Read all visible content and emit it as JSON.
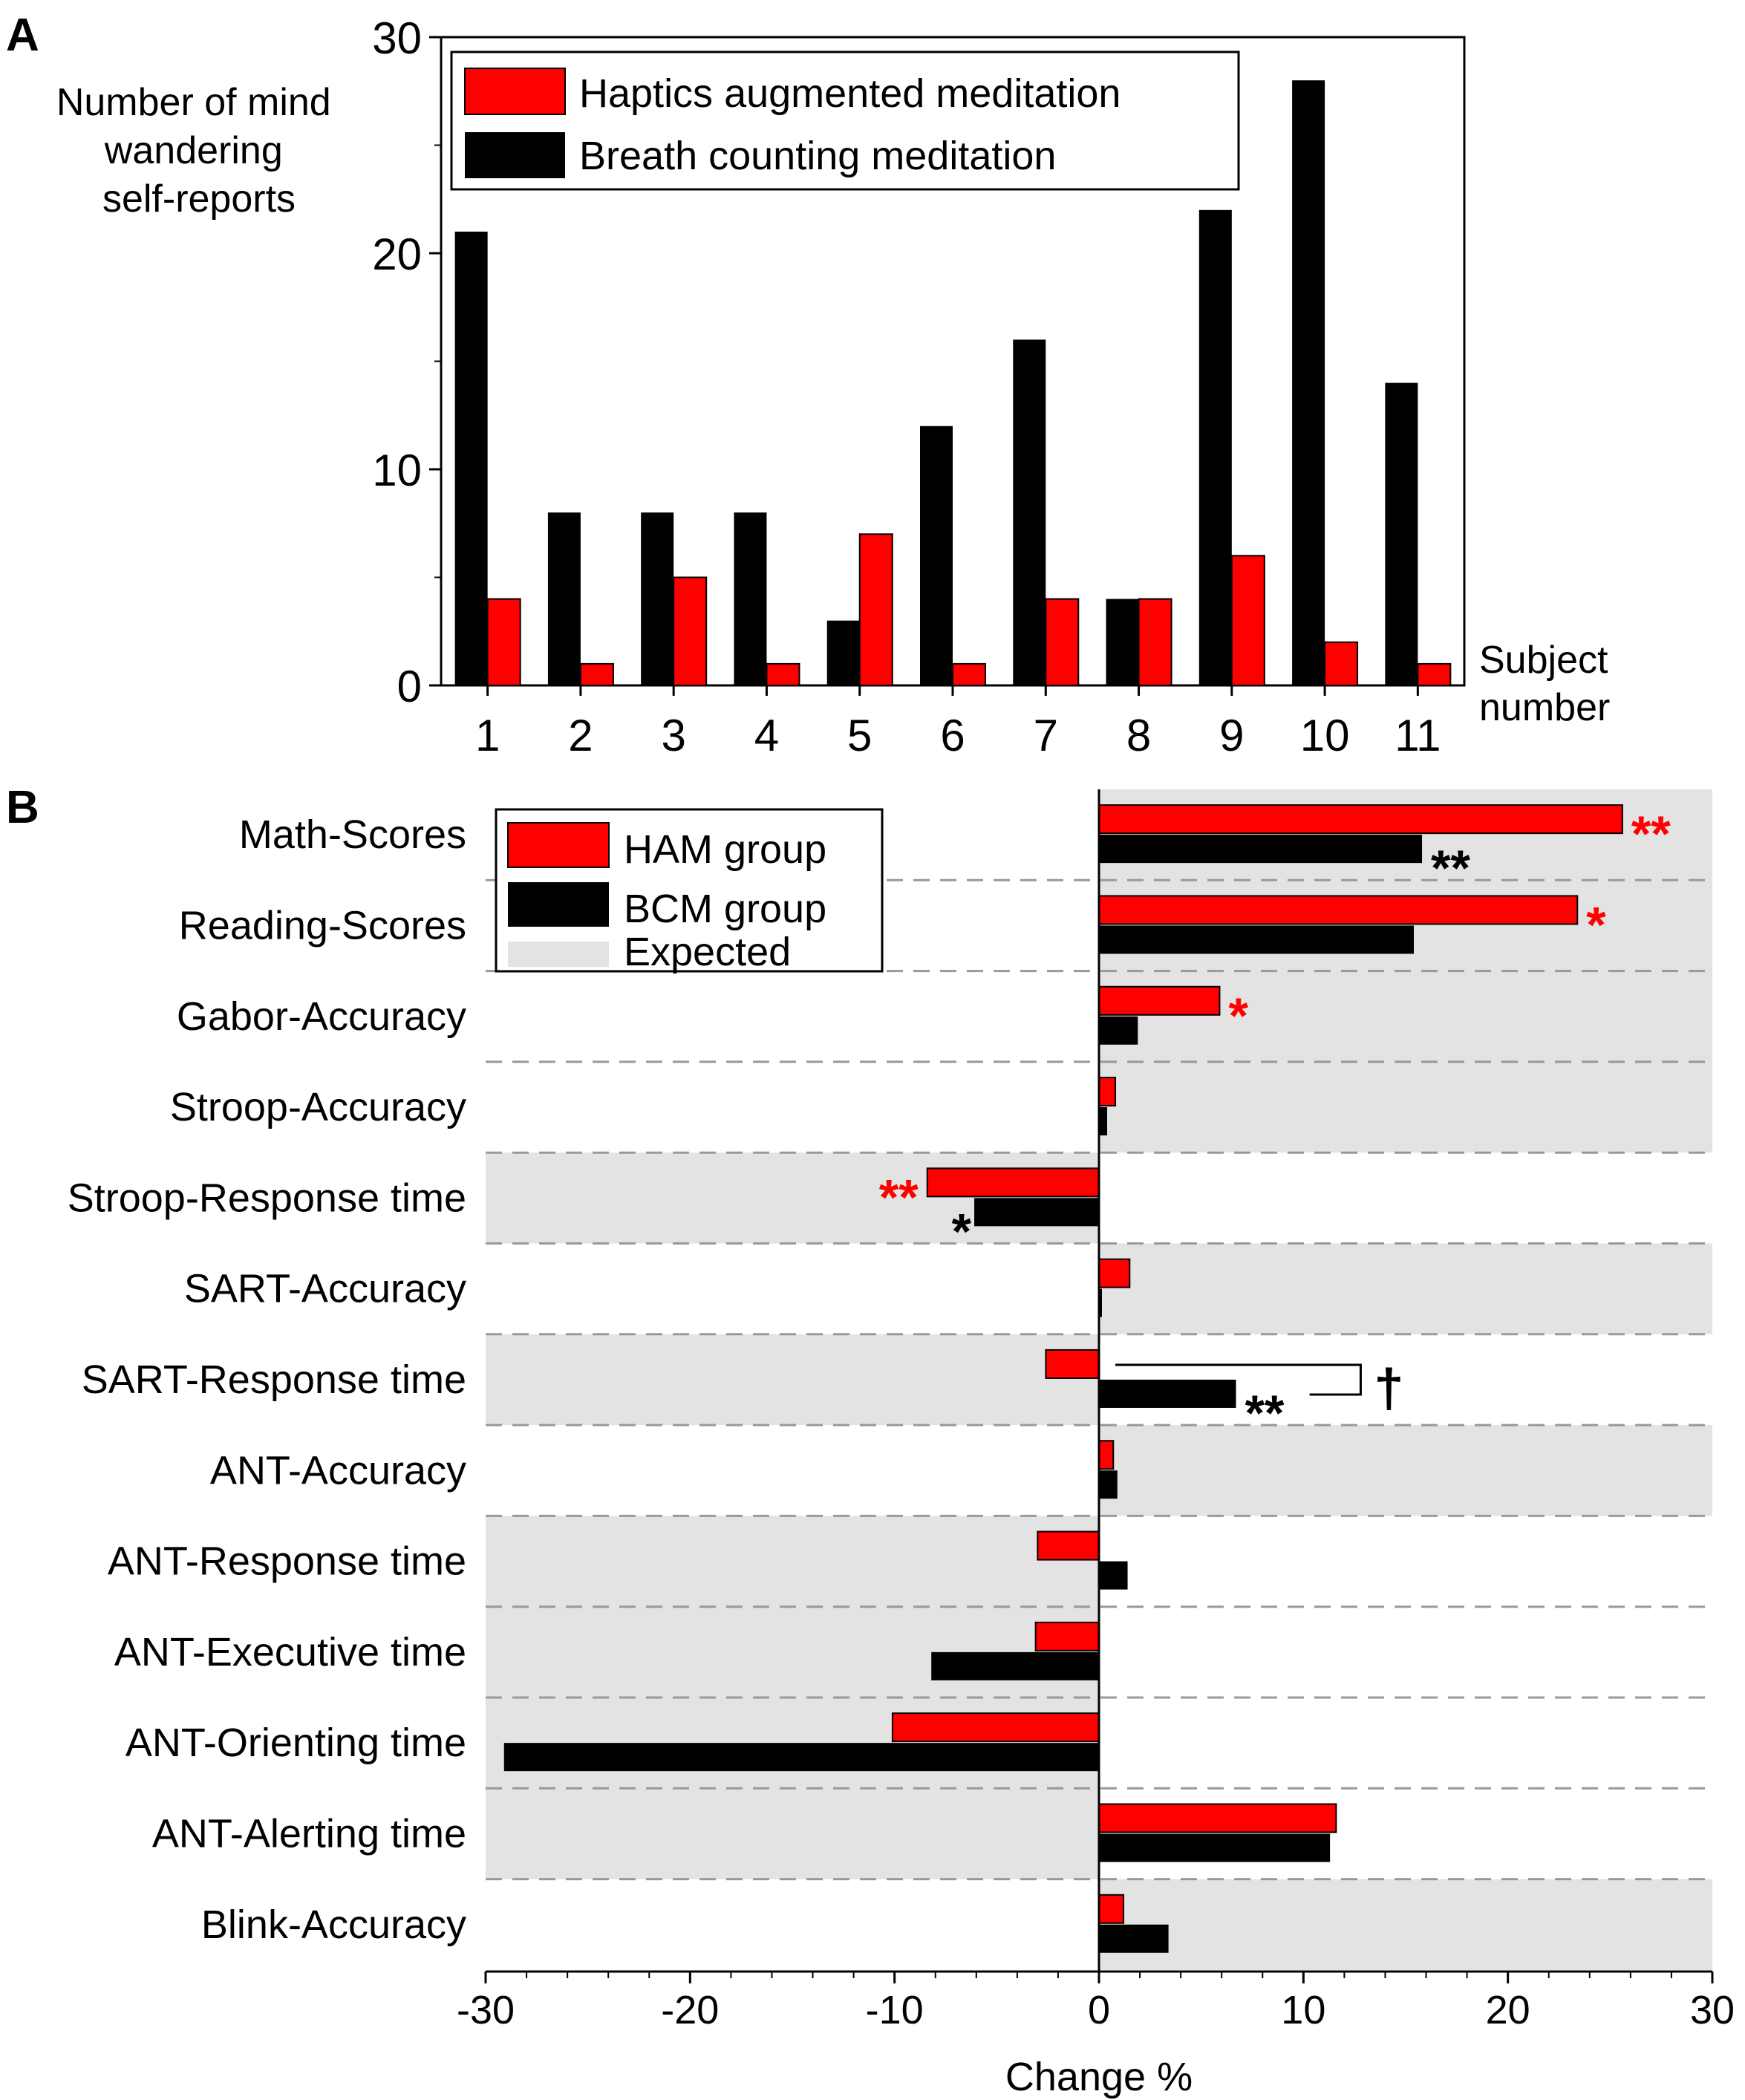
{
  "colors": {
    "ham": "#ff0000",
    "bcm": "#000000",
    "expected": "#e3e3e3",
    "sig_red": "#ff0000",
    "sig_black": "#000000"
  },
  "chart_data": [
    {
      "type": "bar",
      "panel_label": "A",
      "ylabel": [
        "Number of mind",
        "wandering",
        "self-reports"
      ],
      "xlabel": [
        "Subject",
        "number"
      ],
      "categories": [
        "1",
        "2",
        "3",
        "4",
        "5",
        "6",
        "7",
        "8",
        "9",
        "10",
        "11"
      ],
      "ylim": [
        0,
        30
      ],
      "yticks": [
        "0",
        "10",
        "20",
        "30"
      ],
      "series": [
        {
          "name": "Breath counting meditation",
          "values": [
            21,
            8,
            8,
            8,
            3,
            12,
            16,
            4,
            22,
            28,
            14
          ]
        },
        {
          "name": "Haptics augmented meditation",
          "values": [
            4,
            1,
            5,
            1,
            7,
            1,
            4,
            4,
            6,
            2,
            1
          ]
        }
      ],
      "legend": [
        "Haptics augmented meditation",
        "Breath counting meditation"
      ],
      "legend_position": "top"
    },
    {
      "type": "bar-horizontal",
      "panel_label": "B",
      "xlabel": "Change %",
      "xlim": [
        -30,
        30
      ],
      "xticks": [
        "-30",
        "-20",
        "-10",
        "0",
        "10",
        "20",
        "30"
      ],
      "categories": [
        "Math-Scores",
        "Reading-Scores",
        "Gabor-Accuracy",
        "Stroop-Accuracy",
        "Stroop-Response time",
        "SART-Accuracy",
        "SART-Response time",
        "ANT-Accuracy",
        "ANT-Response time",
        "ANT-Executive time",
        "ANT-Orienting time",
        "ANT-Alerting time",
        "Blink-Accuracy"
      ],
      "series": [
        {
          "name": "HAM group",
          "values": [
            25.6,
            23.4,
            5.9,
            0.8,
            -8.4,
            1.5,
            -2.6,
            0.7,
            -3.0,
            -3.1,
            -10.1,
            11.6,
            1.2
          ]
        },
        {
          "name": "BCM group",
          "values": [
            15.8,
            15.4,
            1.9,
            0.4,
            -6.1,
            0.1,
            6.7,
            0.9,
            1.4,
            -8.2,
            -29.1,
            11.3,
            3.4
          ]
        }
      ],
      "expected_direction": [
        "positive",
        "positive",
        "positive",
        "positive",
        "negative",
        "positive",
        "negative",
        "positive",
        "negative",
        "negative",
        "negative",
        "negative",
        "positive"
      ],
      "significance": [
        {
          "row": 0,
          "series": "HAM group",
          "mark": "**"
        },
        {
          "row": 0,
          "series": "BCM group",
          "mark": "**"
        },
        {
          "row": 1,
          "series": "HAM group",
          "mark": "*"
        },
        {
          "row": 2,
          "series": "HAM group",
          "mark": "*"
        },
        {
          "row": 4,
          "series": "HAM group",
          "mark": "**"
        },
        {
          "row": 4,
          "series": "BCM group",
          "mark": "*"
        },
        {
          "row": 6,
          "series": "BCM group",
          "mark": "**"
        }
      ],
      "group_comparison": {
        "row": 6,
        "mark": "†"
      },
      "legend": [
        "HAM group",
        "BCM group",
        "Expected"
      ],
      "legend_position": "top-left"
    }
  ]
}
